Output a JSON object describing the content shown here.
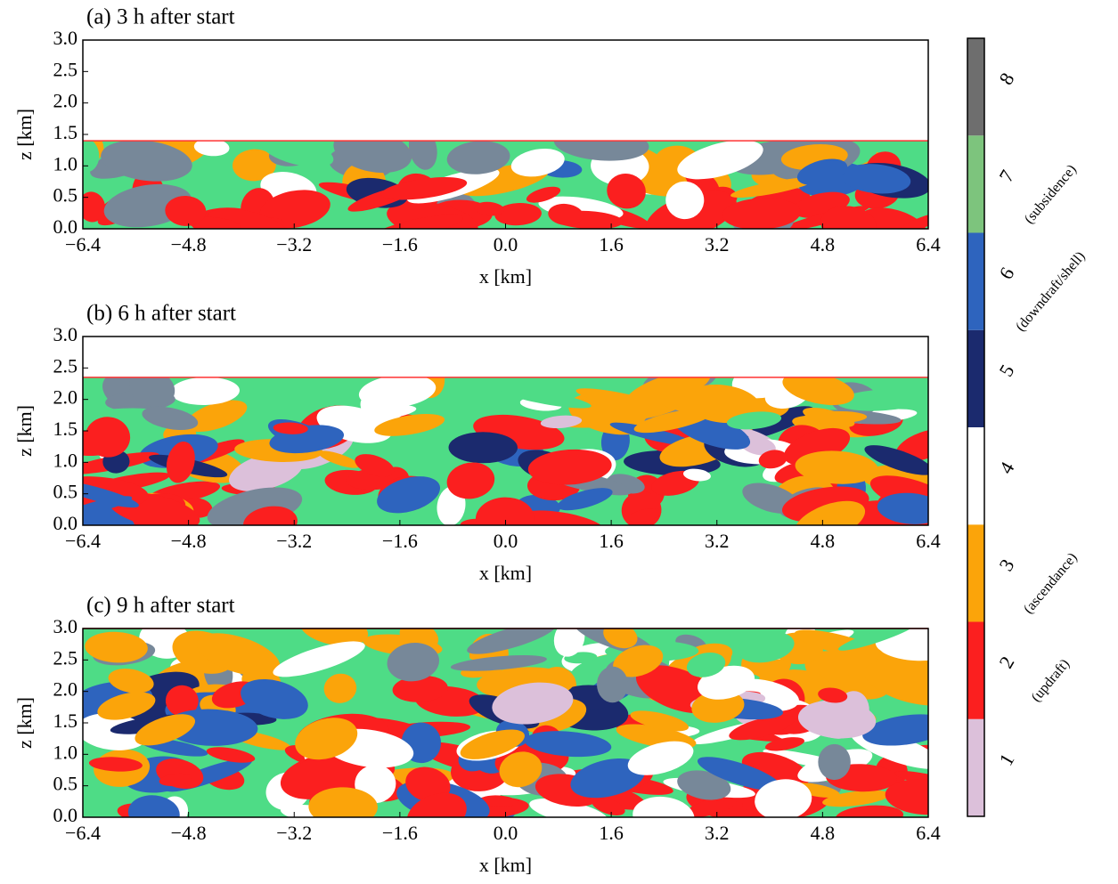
{
  "chart_data": [
    {
      "type": "classification-map",
      "title": "(a) 3 h after start",
      "xlabel": "x [km]",
      "ylabel": "z [km]",
      "xlim": [
        -6.4,
        6.4
      ],
      "ylim": [
        0,
        3
      ],
      "xticks": [
        {
          "value": -6.4,
          "label": "−6.4"
        },
        {
          "value": -4.8,
          "label": "−4.8"
        },
        {
          "value": -3.2,
          "label": "−3.2"
        },
        {
          "value": -1.6,
          "label": "−1.6"
        },
        {
          "value": 0,
          "label": "0.0"
        },
        1.6,
        3.2,
        4.8,
        6.4
      ],
      "yticks": [
        {
          "value": 0,
          "label": "0.0"
        },
        0.5,
        {
          "value": 1,
          "label": "1.0"
        },
        1.5,
        {
          "value": 2,
          "label": "2.0"
        },
        2.5,
        {
          "value": 3,
          "label": "3.0"
        }
      ],
      "field_top": 1.4
    },
    {
      "type": "classification-map",
      "title": "(b) 6 h after start",
      "xlabel": "x [km]",
      "ylabel": "z [km]",
      "xlim": [
        -6.4,
        6.4
      ],
      "ylim": [
        0,
        3
      ],
      "xticks": [
        {
          "value": -6.4,
          "label": "−6.4"
        },
        {
          "value": -4.8,
          "label": "−4.8"
        },
        {
          "value": -3.2,
          "label": "−3.2"
        },
        {
          "value": -1.6,
          "label": "−1.6"
        },
        {
          "value": 0,
          "label": "0.0"
        },
        1.6,
        3.2,
        4.8,
        6.4
      ],
      "yticks": [
        {
          "value": 0,
          "label": "0.0"
        },
        0.5,
        {
          "value": 1,
          "label": "1.0"
        },
        1.5,
        {
          "value": 2,
          "label": "2.0"
        },
        2.5,
        {
          "value": 3,
          "label": "3.0"
        }
      ],
      "field_top": 2.35
    },
    {
      "type": "classification-map",
      "title": "(c) 9 h after start",
      "xlabel": "x [km]",
      "ylabel": "z [km]",
      "xlim": [
        -6.4,
        6.4
      ],
      "ylim": [
        0,
        3
      ],
      "xticks": [
        {
          "value": -6.4,
          "label": "−6.4"
        },
        {
          "value": -4.8,
          "label": "−4.8"
        },
        {
          "value": -3.2,
          "label": "−3.2"
        },
        {
          "value": -1.6,
          "label": "−1.6"
        },
        {
          "value": 0,
          "label": "0.0"
        },
        1.6,
        3.2,
        4.8,
        6.4
      ],
      "yticks": [
        {
          "value": 0,
          "label": "0.0"
        },
        0.5,
        {
          "value": 1,
          "label": "1.0"
        },
        1.5,
        {
          "value": 2,
          "label": "2.0"
        },
        2.5,
        {
          "value": 3,
          "label": "3.0"
        }
      ],
      "field_top": 3
    }
  ],
  "colorbar": {
    "levels": [
      {
        "value": 1,
        "color": "#dcc0da"
      },
      {
        "value": 2,
        "color": "#fb1f1f"
      },
      {
        "value": 3,
        "color": "#fba40a"
      },
      {
        "value": 4,
        "color": "#ffffff"
      },
      {
        "value": 5,
        "color": "#1b2a6e"
      },
      {
        "value": 6,
        "color": "#2e64be"
      },
      {
        "value": 7,
        "color": "#7dc47d"
      },
      {
        "value": 8,
        "color": "#6e6e6e"
      }
    ],
    "annotations": [
      {
        "level": 2,
        "text": "(updraft)"
      },
      {
        "level": 3,
        "text": "(ascendance)"
      },
      {
        "level": 6,
        "text": "(downdraft/shell)"
      },
      {
        "level": 7,
        "text": "(subsidence)"
      }
    ]
  }
}
